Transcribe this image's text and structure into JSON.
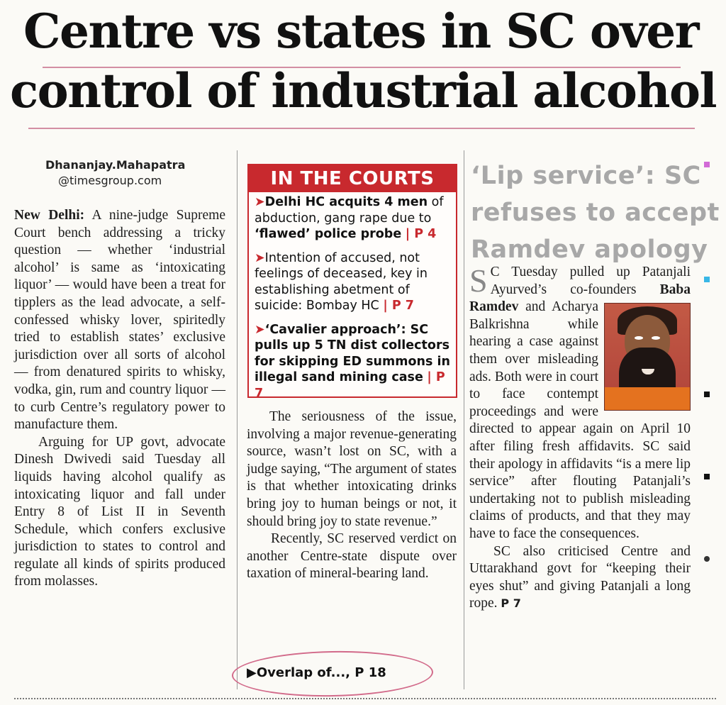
{
  "headline": {
    "line1": "Centre vs states in SC over",
    "line2": "control of industrial alcohol"
  },
  "byline": {
    "name": "Dhananjay.Mahapatra",
    "email": "@timesgroup.com"
  },
  "main_story": {
    "dateline": "New Delhi:",
    "p1_rest": " A nine-judge Supreme Court bench addressing a tricky question — whether ‘industrial alcohol’ is same as ‘intoxicating liquor’ — would have been a treat for tipplers as the lead advocate, a self-confessed whisky lover, spiritedly tried to establish states’ exclusive jurisdiction over all sorts of alcohol — from denatured spirits to whisky, vodka, gin, rum and country liquor — to curb Centre’s regulatory power to manufacture them.",
    "p2": "Arguing for UP govt, advocate Dinesh Dwivedi said Tuesday all liquids having alcohol qualify as intoxicating liquor and fall under Entry 8 of List II in Seventh Schedule, which confers exclusive jurisdiction to states to control and regulate all kinds of spirits produced from molasses.",
    "p3": "The seriousness of the issue, involving a major revenue-generating source, wasn’t lost on SC, with a judge saying, “The argument of states is that whether intoxicating drinks bring joy to human beings or not, it should bring joy to state revenue.”",
    "p4": "Recently, SC reserved verdict on another Centre-state dispute over taxation of mineral-bearing land.",
    "jump": "▶Overlap of..., P 18"
  },
  "in_the_courts": {
    "title": "IN THE COURTS",
    "items": [
      {
        "lead": "Delhi HC acquits 4 men",
        "rest": " of abduction, gang rape due to ",
        "bold_tail": "‘flawed’ police probe",
        "page": "| P 4"
      },
      {
        "lead": "",
        "rest": "Intention of accused, not feelings of deceased, key in establishing abetment of suicide: Bombay HC ",
        "bold_tail": "",
        "page": "| P 7"
      },
      {
        "lead": "‘Cavalier approach’: SC pulls up 5 TN dist collectors for skipping ED summons in illegal sand mining case",
        "rest": " ",
        "bold_tail": "",
        "page": "| P 7"
      }
    ]
  },
  "side_story": {
    "headline_l1": "‘Lip service’: SC",
    "headline_l2": "refuses to accept",
    "headline_l3": "Ramdev apology",
    "dropcap": "S",
    "p1_a": "C Tuesday pulled up Patanjali Ayurved’s co-founders ",
    "p1_bold": "Baba Ramdev",
    "p1_b": " and Acharya Balkrishna while hearing a case against them over misleading ads. Both were in court to face contempt proceedings and were directed to appear again on April 10 after filing fresh affidavits. SC said their apology in affidavits “is a mere lip service” after flouting Patanjali’s undertaking not to publish misleading claims of products, and that they may have to face the consequences.",
    "p2": "SC also criticised Centre and Uttarakhand govt for “keeping their eyes shut” and giving Patanjali a long rope. ",
    "p2_page": "P 7"
  },
  "colors": {
    "accent_red": "#c8292e",
    "circle_pink": "#d26a8a",
    "rule_pink": "#c9738f",
    "subhead_grey": "#a8a8a8"
  }
}
